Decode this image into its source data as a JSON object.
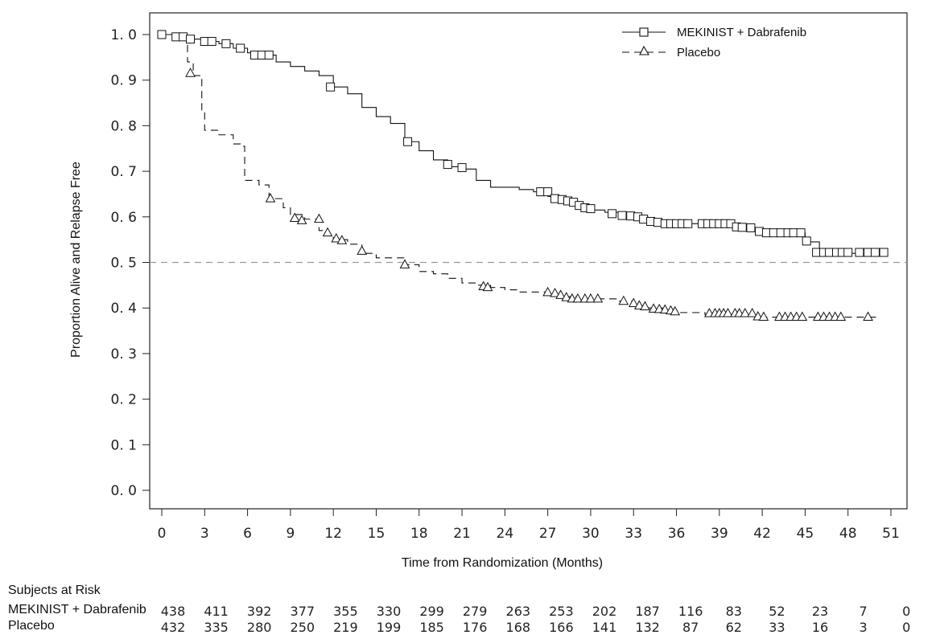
{
  "chart_data": {
    "type": "line",
    "xlabel": "Time from Randomization (Months)",
    "ylabel": "Proportion Alive and Relapse Free",
    "xlim": [
      -1,
      52
    ],
    "ylim": [
      -0.04,
      1.05
    ],
    "xticks": [
      "0",
      "3",
      "6",
      "9",
      "12",
      "15",
      "18",
      "21",
      "24",
      "27",
      "30",
      "33",
      "36",
      "39",
      "42",
      "45",
      "48",
      "51"
    ],
    "yticks": [
      "1. 0",
      "0. 9",
      "0. 8",
      "0. 7",
      "0. 6",
      "0. 5",
      "0. 4",
      "0. 3",
      "0. 2",
      "0. 1",
      "0. 0"
    ],
    "ytick_values": [
      1.0,
      0.9,
      0.8,
      0.7,
      0.6,
      0.5,
      0.4,
      0.3,
      0.2,
      0.1,
      0.0
    ],
    "reference_line": {
      "y": 0.5,
      "style": "dashed"
    },
    "grid": false,
    "legend_position": "top-right",
    "series": [
      {
        "name": "MEKINIST + Dabrafenib",
        "line_style": "solid",
        "marker": "square",
        "points": [
          [
            0,
            1.0
          ],
          [
            1,
            0.995
          ],
          [
            2,
            0.99
          ],
          [
            3,
            0.985
          ],
          [
            4,
            0.98
          ],
          [
            5,
            0.97
          ],
          [
            6,
            0.96
          ],
          [
            7,
            0.955
          ],
          [
            8,
            0.94
          ],
          [
            9,
            0.93
          ],
          [
            10,
            0.92
          ],
          [
            11,
            0.91
          ],
          [
            12,
            0.885
          ],
          [
            13,
            0.87
          ],
          [
            14,
            0.84
          ],
          [
            15,
            0.82
          ],
          [
            16,
            0.805
          ],
          [
            17,
            0.765
          ],
          [
            18,
            0.745
          ],
          [
            19,
            0.725
          ],
          [
            20,
            0.71
          ],
          [
            21,
            0.705
          ],
          [
            22,
            0.68
          ],
          [
            23,
            0.665
          ],
          [
            24,
            0.665
          ],
          [
            25,
            0.66
          ],
          [
            26,
            0.655
          ],
          [
            27,
            0.645
          ],
          [
            28,
            0.635
          ],
          [
            29,
            0.625
          ],
          [
            30,
            0.615
          ],
          [
            31,
            0.61
          ],
          [
            32,
            0.605
          ],
          [
            33,
            0.6
          ],
          [
            34,
            0.595
          ],
          [
            35,
            0.59
          ],
          [
            36,
            0.585
          ],
          [
            37,
            0.585
          ],
          [
            38,
            0.585
          ],
          [
            39,
            0.58
          ],
          [
            40,
            0.575
          ],
          [
            41,
            0.57
          ],
          [
            42,
            0.565
          ],
          [
            43,
            0.565
          ],
          [
            44,
            0.565
          ],
          [
            45,
            0.545
          ],
          [
            46,
            0.52
          ],
          [
            47,
            0.52
          ],
          [
            48,
            0.52
          ],
          [
            49,
            0.52
          ],
          [
            50,
            0.52
          ]
        ],
        "censored": [
          [
            0,
            1.0
          ],
          [
            1,
            0.995
          ],
          [
            1.5,
            0.995
          ],
          [
            2,
            0.99
          ],
          [
            3,
            0.985
          ],
          [
            3.5,
            0.985
          ],
          [
            4.5,
            0.98
          ],
          [
            5.5,
            0.97
          ],
          [
            6.5,
            0.955
          ],
          [
            7,
            0.955
          ],
          [
            7.5,
            0.955
          ],
          [
            11.8,
            0.885
          ],
          [
            17.2,
            0.765
          ],
          [
            20,
            0.715
          ],
          [
            21,
            0.708
          ],
          [
            26.5,
            0.655
          ],
          [
            27,
            0.655
          ],
          [
            27.5,
            0.64
          ],
          [
            28,
            0.638
          ],
          [
            28.4,
            0.635
          ],
          [
            28.8,
            0.632
          ],
          [
            29.2,
            0.625
          ],
          [
            29.6,
            0.62
          ],
          [
            30,
            0.618
          ],
          [
            31.5,
            0.607
          ],
          [
            32.2,
            0.603
          ],
          [
            32.8,
            0.602
          ],
          [
            33.3,
            0.6
          ],
          [
            33.7,
            0.595
          ],
          [
            34.2,
            0.59
          ],
          [
            34.7,
            0.588
          ],
          [
            35.2,
            0.585
          ],
          [
            35.6,
            0.585
          ],
          [
            36,
            0.585
          ],
          [
            36.4,
            0.585
          ],
          [
            36.8,
            0.585
          ],
          [
            37.8,
            0.585
          ],
          [
            38.2,
            0.585
          ],
          [
            38.6,
            0.585
          ],
          [
            39,
            0.585
          ],
          [
            39.4,
            0.585
          ],
          [
            39.8,
            0.585
          ],
          [
            40.2,
            0.578
          ],
          [
            40.6,
            0.577
          ],
          [
            41.2,
            0.576
          ],
          [
            41.8,
            0.568
          ],
          [
            42.3,
            0.565
          ],
          [
            42.8,
            0.565
          ],
          [
            43.3,
            0.565
          ],
          [
            43.8,
            0.565
          ],
          [
            44.2,
            0.565
          ],
          [
            44.7,
            0.565
          ],
          [
            45.1,
            0.547
          ],
          [
            45.8,
            0.522
          ],
          [
            46.3,
            0.522
          ],
          [
            46.7,
            0.522
          ],
          [
            47.2,
            0.522
          ],
          [
            47.6,
            0.522
          ],
          [
            48,
            0.522
          ],
          [
            48.8,
            0.522
          ],
          [
            49.4,
            0.522
          ],
          [
            49.9,
            0.522
          ],
          [
            50.5,
            0.522
          ]
        ]
      },
      {
        "name": "Placebo",
        "line_style": "dashed",
        "marker": "triangle",
        "points": [
          [
            0,
            1.0
          ],
          [
            1,
            0.99
          ],
          [
            1.8,
            0.94
          ],
          [
            2.2,
            0.91
          ],
          [
            2.8,
            0.83
          ],
          [
            3,
            0.79
          ],
          [
            4,
            0.78
          ],
          [
            5,
            0.76
          ],
          [
            5.5,
            0.755
          ],
          [
            5.8,
            0.68
          ],
          [
            6.8,
            0.67
          ],
          [
            7.5,
            0.64
          ],
          [
            8.5,
            0.62
          ],
          [
            9,
            0.605
          ],
          [
            10,
            0.595
          ],
          [
            11,
            0.57
          ],
          [
            11.5,
            0.56
          ],
          [
            12,
            0.55
          ],
          [
            13,
            0.54
          ],
          [
            14,
            0.52
          ],
          [
            15,
            0.51
          ],
          [
            16,
            0.51
          ],
          [
            17,
            0.495
          ],
          [
            18,
            0.48
          ],
          [
            19,
            0.475
          ],
          [
            20,
            0.465
          ],
          [
            21,
            0.455
          ],
          [
            22,
            0.45
          ],
          [
            23,
            0.445
          ],
          [
            24,
            0.44
          ],
          [
            25,
            0.435
          ],
          [
            26,
            0.435
          ],
          [
            27,
            0.43
          ],
          [
            28,
            0.425
          ],
          [
            29,
            0.42
          ],
          [
            30,
            0.42
          ],
          [
            31,
            0.42
          ],
          [
            32,
            0.415
          ],
          [
            33,
            0.405
          ],
          [
            34,
            0.4
          ],
          [
            35,
            0.395
          ],
          [
            36,
            0.39
          ],
          [
            37,
            0.39
          ],
          [
            38,
            0.385
          ],
          [
            39,
            0.385
          ],
          [
            40,
            0.385
          ],
          [
            41,
            0.385
          ],
          [
            42,
            0.38
          ],
          [
            43,
            0.38
          ],
          [
            44,
            0.38
          ],
          [
            45,
            0.38
          ],
          [
            46,
            0.38
          ],
          [
            47,
            0.38
          ],
          [
            48,
            0.38
          ],
          [
            49,
            0.38
          ],
          [
            50,
            0.38
          ]
        ],
        "censored": [
          [
            2,
            0.915
          ],
          [
            7.6,
            0.64
          ],
          [
            9.3,
            0.597
          ],
          [
            9.8,
            0.592
          ],
          [
            11,
            0.595
          ],
          [
            11.6,
            0.565
          ],
          [
            12.2,
            0.552
          ],
          [
            12.6,
            0.548
          ],
          [
            14,
            0.525
          ],
          [
            17,
            0.495
          ],
          [
            22.5,
            0.447
          ],
          [
            22.8,
            0.445
          ],
          [
            27,
            0.434
          ],
          [
            27.5,
            0.432
          ],
          [
            27.9,
            0.428
          ],
          [
            28.3,
            0.423
          ],
          [
            28.7,
            0.42
          ],
          [
            29.1,
            0.42
          ],
          [
            29.6,
            0.42
          ],
          [
            30,
            0.42
          ],
          [
            30.5,
            0.42
          ],
          [
            32.3,
            0.415
          ],
          [
            33,
            0.41
          ],
          [
            33.4,
            0.405
          ],
          [
            33.8,
            0.403
          ],
          [
            34.4,
            0.398
          ],
          [
            34.8,
            0.397
          ],
          [
            35.2,
            0.396
          ],
          [
            35.6,
            0.394
          ],
          [
            35.9,
            0.392
          ],
          [
            38.3,
            0.388
          ],
          [
            38.7,
            0.388
          ],
          [
            39,
            0.388
          ],
          [
            39.3,
            0.388
          ],
          [
            39.6,
            0.388
          ],
          [
            40.1,
            0.388
          ],
          [
            40.4,
            0.388
          ],
          [
            40.8,
            0.388
          ],
          [
            41.3,
            0.388
          ],
          [
            41.7,
            0.381
          ],
          [
            42.1,
            0.38
          ],
          [
            43.2,
            0.38
          ],
          [
            43.6,
            0.38
          ],
          [
            44,
            0.38
          ],
          [
            44.4,
            0.38
          ],
          [
            44.8,
            0.38
          ],
          [
            45.9,
            0.38
          ],
          [
            46.3,
            0.38
          ],
          [
            46.7,
            0.38
          ],
          [
            47.1,
            0.38
          ],
          [
            47.5,
            0.38
          ],
          [
            49.4,
            0.38
          ]
        ]
      }
    ]
  },
  "at_risk": {
    "title": "Subjects at Risk",
    "rows": [
      {
        "label": "MEKINIST + Dabrafenib",
        "values": [
          "438",
          "411",
          "392",
          "377",
          "355",
          "330",
          "299",
          "279",
          "263",
          "253",
          "202",
          "187",
          "116",
          "83",
          "52",
          "23",
          "7",
          "0"
        ]
      },
      {
        "label": "Placebo",
        "values": [
          "432",
          "335",
          "280",
          "250",
          "219",
          "199",
          "185",
          "176",
          "168",
          "166",
          "141",
          "132",
          "87",
          "62",
          "33",
          "16",
          "3",
          "0"
        ]
      }
    ]
  }
}
